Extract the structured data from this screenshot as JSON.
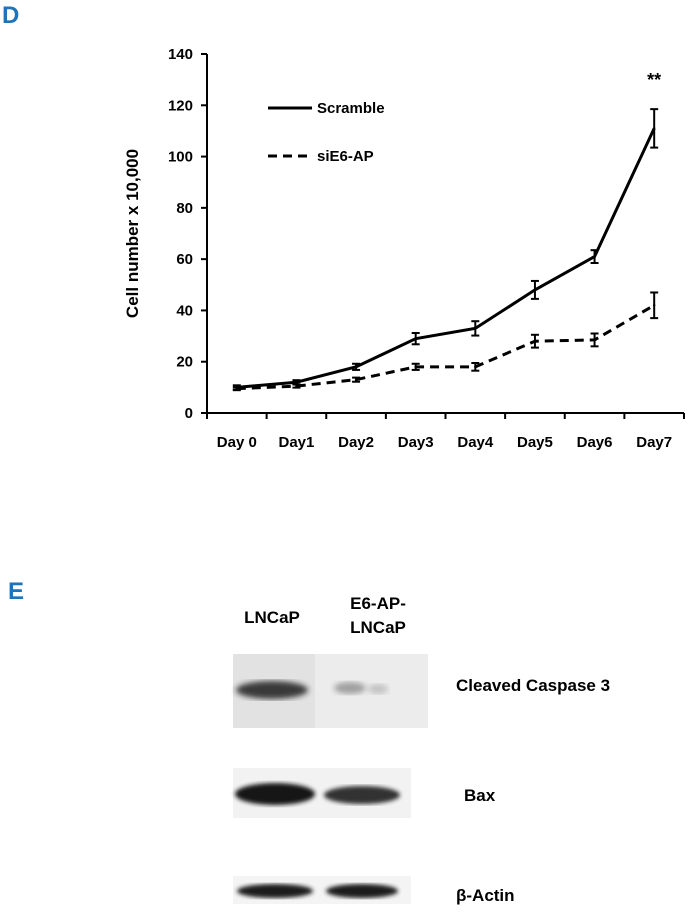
{
  "panel_d": {
    "letter": "D",
    "letter_color": "#1f73b8"
  },
  "panel_e": {
    "letter": "E",
    "letter_color": "#1f73b8",
    "lanes": [
      "LNCaP",
      "E6-AP-\nLNCaP"
    ],
    "rows": [
      {
        "label": "Cleaved Caspase 3",
        "band_intensity": [
          0.85,
          0.3
        ]
      },
      {
        "label": "Bax",
        "band_intensity": [
          0.95,
          0.85
        ]
      },
      {
        "label": "β-Actin",
        "band_intensity": [
          0.95,
          0.95
        ]
      }
    ]
  },
  "chart_data": {
    "type": "line",
    "title": "",
    "xlabel": "",
    "ylabel": "Cell number x 10,000",
    "categories": [
      "Day 0",
      "Day1",
      "Day2",
      "Day3",
      "Day4",
      "Day5",
      "Day6",
      "Day7"
    ],
    "ylim": [
      0,
      140
    ],
    "yticks": [
      0,
      20,
      40,
      60,
      80,
      100,
      120,
      140
    ],
    "grid": false,
    "legend_position": "top-left",
    "series": [
      {
        "name": "Scramble",
        "line_style": "solid",
        "color": "#000000",
        "values": [
          10,
          12,
          18,
          29,
          33,
          48,
          61,
          111
        ],
        "errors": [
          0.8,
          0.8,
          1.2,
          2.2,
          2.8,
          3.5,
          2.5,
          7.5
        ]
      },
      {
        "name": "siE6-AP",
        "line_style": "dashed",
        "color": "#000000",
        "values": [
          9.5,
          10.5,
          13,
          18,
          18,
          28,
          28.5,
          42
        ],
        "errors": [
          0.6,
          0.6,
          0.8,
          1.2,
          1.5,
          2.5,
          2.5,
          5.0
        ]
      }
    ],
    "annotations": [
      {
        "text": "**",
        "category": "Day7"
      }
    ]
  }
}
